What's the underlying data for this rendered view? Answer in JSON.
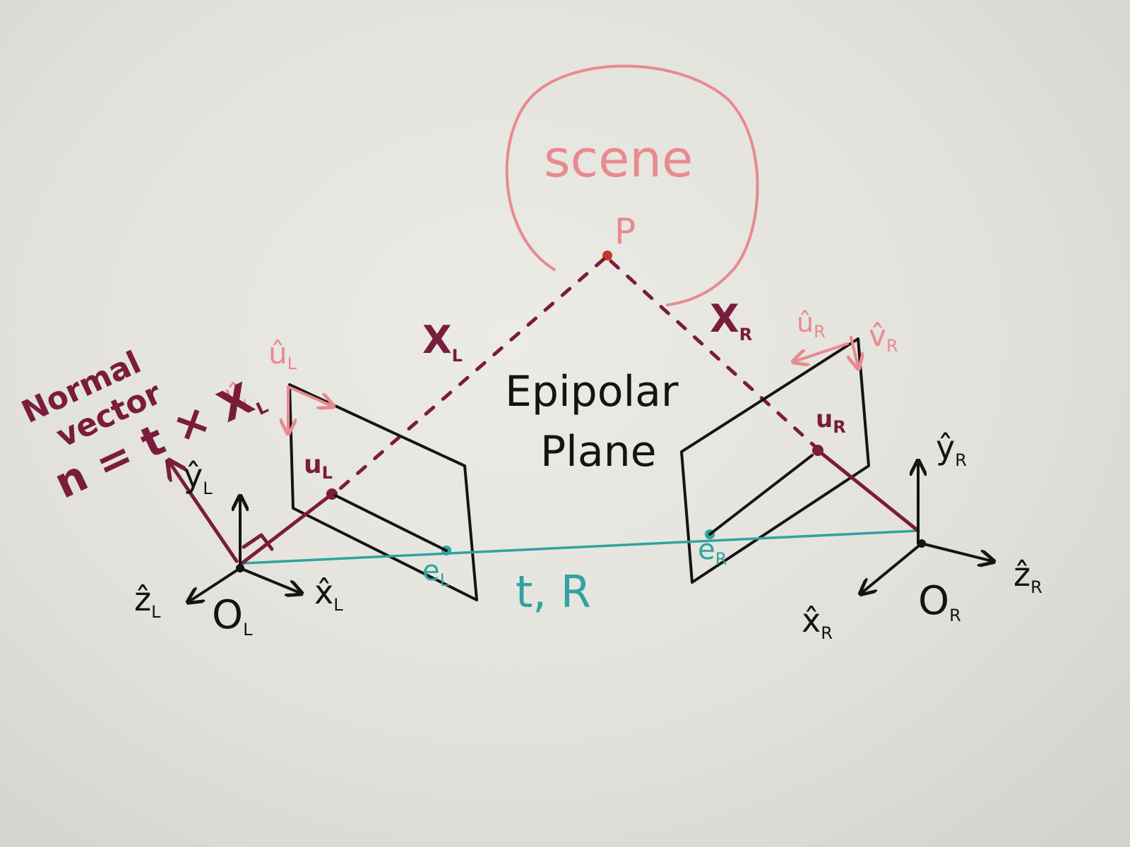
{
  "colors": {
    "black_ink": "#141414",
    "maroon_ink": "#7a1c3c",
    "pink_ink": "#e88a8e",
    "teal_ink": "#2fa3a0"
  },
  "scene": {
    "title": "scene",
    "point": "P"
  },
  "epipolar_plane": {
    "line1": "Epipolar",
    "line2": "Plane"
  },
  "baseline": {
    "label": "t, R"
  },
  "left_camera": {
    "origin": "O",
    "origin_sub": "L",
    "x_axis": "x̂",
    "x_sub": "L",
    "y_axis": "ŷ",
    "y_sub": "L",
    "z_axis": "ẑ",
    "z_sub": "L",
    "ray": "X",
    "ray_sub": "L",
    "image_point": "u",
    "image_point_sub": "L",
    "epipole": "e",
    "epipole_sub": "L",
    "u_axis": "û",
    "u_sub": "L",
    "v_axis": "v̂",
    "v_sub": "L"
  },
  "right_camera": {
    "origin": "O",
    "origin_sub": "R",
    "x_axis": "x̂",
    "x_sub": "R",
    "y_axis": "ŷ",
    "y_sub": "R",
    "z_axis": "ẑ",
    "z_sub": "R",
    "ray": "X",
    "ray_sub": "R",
    "image_point": "u",
    "image_point_sub": "R",
    "epipole": "e",
    "epipole_sub": "R",
    "u_axis": "û",
    "u_sub": "R",
    "v_axis": "v̂",
    "v_sub": "R"
  },
  "normal_note": {
    "line1": "Normal",
    "line2": "vector",
    "line3": "n = t × X",
    "line3_sub": "L"
  }
}
